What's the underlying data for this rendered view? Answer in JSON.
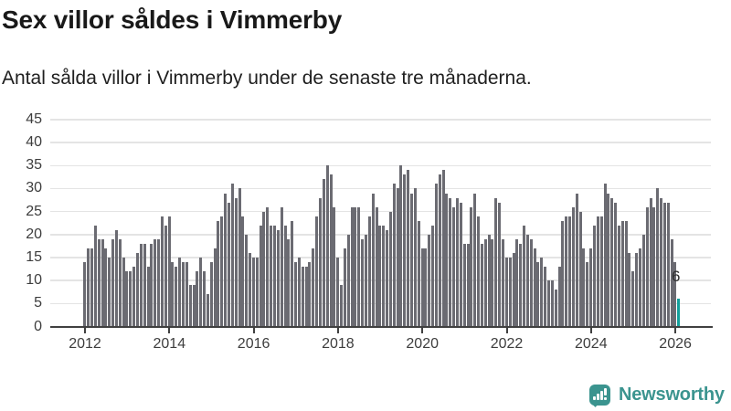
{
  "header": {
    "title": "Sex villor såldes i Vimmerby",
    "subtitle": "Antal sålda villor i Vimmerby under de senaste tre månaderna."
  },
  "chart_data": {
    "type": "bar",
    "title": "Sex villor såldes i Vimmerby",
    "subtitle": "Antal sålda villor i Vimmerby under de senaste tre månaderna.",
    "x_monthly_start": "2012-01",
    "x_monthly_end": "2026-02",
    "x_tick_labels": [
      "2012",
      "2014",
      "2016",
      "2018",
      "2020",
      "2022",
      "2024",
      "2026"
    ],
    "y_ticks": [
      0,
      5,
      10,
      15,
      20,
      25,
      30,
      35,
      40,
      45
    ],
    "ylim": [
      0,
      45
    ],
    "grid": true,
    "bar_color": "#6b6b72",
    "highlight_color": "#13a09c",
    "highlight_index": 169,
    "annotation": {
      "text": "6",
      "value": 6
    },
    "values": [
      14,
      17,
      17,
      22,
      19,
      19,
      17,
      15,
      19,
      21,
      19,
      15,
      12,
      12,
      13,
      16,
      18,
      18,
      13,
      18,
      19,
      19,
      24,
      22,
      24,
      14,
      13,
      15,
      14,
      14,
      9,
      9,
      12,
      15,
      12,
      7,
      14,
      17,
      23,
      24,
      29,
      27,
      31,
      28,
      30,
      24,
      20,
      16,
      15,
      15,
      22,
      25,
      26,
      22,
      22,
      21,
      26,
      22,
      19,
      23,
      14,
      15,
      13,
      13,
      14,
      17,
      24,
      28,
      32,
      35,
      33,
      26,
      15,
      9,
      17,
      20,
      26,
      26,
      26,
      19,
      20,
      24,
      29,
      26,
      22,
      22,
      21,
      25,
      31,
      30,
      35,
      33,
      34,
      29,
      30,
      23,
      17,
      17,
      20,
      22,
      31,
      33,
      34,
      29,
      28,
      26,
      28,
      27,
      18,
      18,
      26,
      29,
      24,
      18,
      19,
      20,
      19,
      28,
      27,
      19,
      15,
      15,
      16,
      19,
      18,
      22,
      20,
      19,
      17,
      14,
      15,
      13,
      10,
      10,
      8,
      13,
      23,
      24,
      24,
      26,
      29,
      25,
      17,
      14,
      17,
      22,
      24,
      24,
      31,
      29,
      28,
      27,
      22,
      23,
      23,
      16,
      12,
      16,
      17,
      20,
      26,
      28,
      26,
      30,
      28,
      27,
      27,
      19,
      14,
      6
    ]
  },
  "footer": {
    "brand": "Newsworthy",
    "logo_icon": "newsworthy-speech-bubble-chart-icon"
  },
  "colors": {
    "bar_gray": "#6b6b72",
    "highlight_teal": "#13a09c",
    "logo_teal": "#3b948f",
    "gridline": "#e4e4e4",
    "axis": "#404040",
    "text_dark": "#191919"
  }
}
